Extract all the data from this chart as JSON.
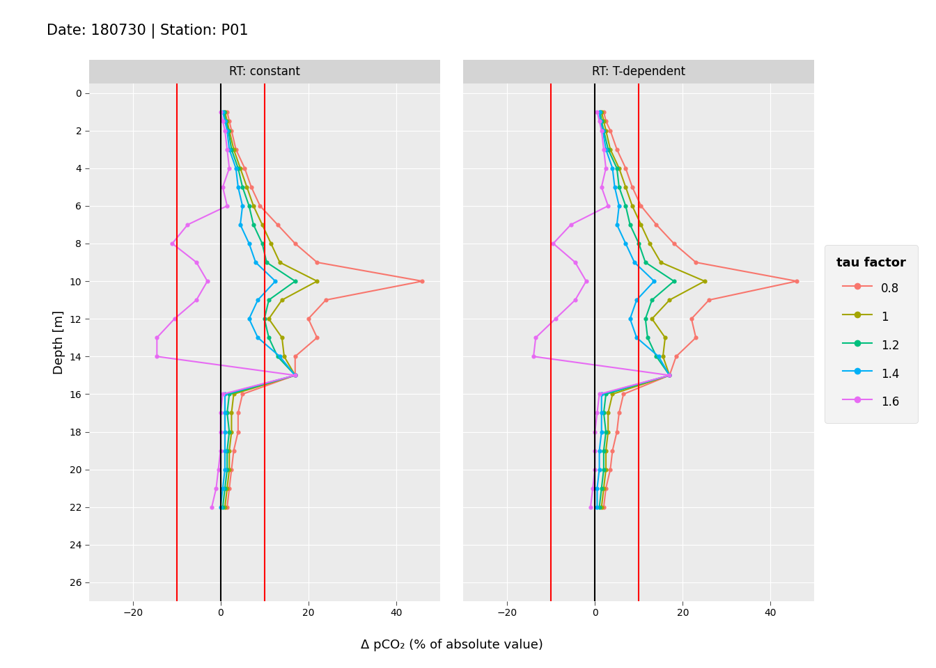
{
  "title": "Date: 180730 | Station: P01",
  "xlabel": "Δ pCO₂ (% of absolute value)",
  "ylabel": "Depth [m]",
  "panel_titles": [
    "RT: constant",
    "RT: T-dependent"
  ],
  "legend_title": "tau factor",
  "legend_labels": [
    "0.8",
    "1",
    "1.2",
    "1.4",
    "1.6"
  ],
  "colors": {
    "0.8": "#F8766D",
    "1": "#A3A500",
    "1.2": "#00BF7D",
    "1.4": "#00B0F6",
    "1.6": "#E76BF3"
  },
  "xlim": [
    -30,
    50
  ],
  "ylim": [
    27,
    -0.5
  ],
  "xticks": [
    -20,
    0,
    20,
    40
  ],
  "yticks": [
    0,
    2,
    4,
    6,
    8,
    10,
    12,
    14,
    16,
    18,
    20,
    22,
    24,
    26
  ],
  "red_vlines": [
    -10,
    10
  ],
  "black_vline": 0,
  "background_color": "#EBEBEB",
  "grid_color": "white",
  "panel_header_color": "#D4D4D4",
  "constant": {
    "0.8": {
      "depth": [
        1.0,
        1.5,
        2.0,
        3.0,
        4.0,
        5.0,
        6.0,
        7.0,
        8.0,
        9.0,
        10.0,
        11.0,
        12.0,
        13.0,
        14.0,
        15.0,
        16.0,
        17.0,
        18.0,
        19.0,
        20.0,
        21.0,
        22.0
      ],
      "values": [
        1.5,
        2.0,
        2.5,
        3.5,
        5.5,
        7.0,
        9.0,
        13.0,
        17.0,
        22.0,
        46.0,
        24.0,
        20.0,
        22.0,
        17.0,
        17.0,
        5.0,
        4.0,
        4.0,
        3.0,
        2.5,
        2.0,
        1.5
      ]
    },
    "1": {
      "depth": [
        1.0,
        1.5,
        2.0,
        3.0,
        4.0,
        5.0,
        6.0,
        7.0,
        8.0,
        9.0,
        10.0,
        11.0,
        12.0,
        13.0,
        14.0,
        15.0,
        16.0,
        17.0,
        18.0,
        19.0,
        20.0,
        21.0,
        22.0
      ],
      "values": [
        1.0,
        1.5,
        2.0,
        3.0,
        4.5,
        6.0,
        7.5,
        9.5,
        11.5,
        13.5,
        22.0,
        14.0,
        11.0,
        14.0,
        14.5,
        17.0,
        3.0,
        2.5,
        2.5,
        2.0,
        2.0,
        1.5,
        1.0
      ]
    },
    "1.2": {
      "depth": [
        1.0,
        1.5,
        2.0,
        3.0,
        4.0,
        5.0,
        6.0,
        7.0,
        8.0,
        9.0,
        10.0,
        11.0,
        12.0,
        13.0,
        14.0,
        15.0,
        16.0,
        17.0,
        18.0,
        19.0,
        20.0,
        21.0,
        22.0
      ],
      "values": [
        0.8,
        1.2,
        1.8,
        2.5,
        4.0,
        5.0,
        6.5,
        7.5,
        9.5,
        10.5,
        17.0,
        11.0,
        10.0,
        11.0,
        13.0,
        17.0,
        2.0,
        1.5,
        2.0,
        1.5,
        1.5,
        1.0,
        0.5
      ]
    },
    "1.4": {
      "depth": [
        1.0,
        1.5,
        2.0,
        3.0,
        4.0,
        5.0,
        6.0,
        7.0,
        8.0,
        9.0,
        10.0,
        11.0,
        12.0,
        13.0,
        14.0,
        15.0,
        16.0,
        17.0,
        18.0,
        19.0,
        20.0,
        21.0,
        22.0
      ],
      "values": [
        0.5,
        1.0,
        1.5,
        2.0,
        3.5,
        4.0,
        5.0,
        4.5,
        6.5,
        8.0,
        12.5,
        8.5,
        6.5,
        8.5,
        13.5,
        17.0,
        1.0,
        1.0,
        1.0,
        1.0,
        1.0,
        0.5,
        0.0
      ]
    },
    "1.6": {
      "depth": [
        1.0,
        1.5,
        2.0,
        3.0,
        4.0,
        5.0,
        6.0,
        7.0,
        8.0,
        9.0,
        10.0,
        11.0,
        12.0,
        13.0,
        14.0,
        15.0,
        16.0,
        17.0,
        18.0,
        19.0,
        20.0,
        21.0,
        22.0
      ],
      "values": [
        0.0,
        0.5,
        1.0,
        1.5,
        2.0,
        0.5,
        1.5,
        -7.5,
        -11.0,
        -5.5,
        -3.0,
        -5.5,
        -10.5,
        -14.5,
        -14.5,
        17.0,
        0.5,
        0.0,
        0.0,
        0.0,
        -0.5,
        -1.0,
        -2.0
      ]
    }
  },
  "tdep": {
    "0.8": {
      "depth": [
        1.0,
        1.5,
        2.0,
        3.0,
        4.0,
        5.0,
        6.0,
        7.0,
        8.0,
        9.0,
        10.0,
        11.0,
        12.0,
        13.0,
        14.0,
        15.0,
        16.0,
        17.0,
        18.0,
        19.0,
        20.0,
        21.0,
        22.0
      ],
      "values": [
        2.0,
        2.5,
        3.5,
        5.0,
        7.0,
        8.5,
        10.5,
        14.0,
        18.0,
        23.0,
        46.0,
        26.0,
        22.0,
        23.0,
        18.5,
        17.0,
        6.5,
        5.5,
        5.0,
        4.0,
        3.5,
        2.5,
        2.0
      ]
    },
    "1": {
      "depth": [
        1.0,
        1.5,
        2.0,
        3.0,
        4.0,
        5.0,
        6.0,
        7.0,
        8.0,
        9.0,
        10.0,
        11.0,
        12.0,
        13.0,
        14.0,
        15.0,
        16.0,
        17.0,
        18.0,
        19.0,
        20.0,
        21.0,
        22.0
      ],
      "values": [
        1.5,
        2.0,
        2.5,
        3.5,
        5.5,
        7.0,
        8.5,
        10.5,
        12.5,
        15.0,
        25.0,
        17.0,
        13.0,
        16.0,
        15.5,
        17.0,
        4.0,
        3.0,
        3.0,
        2.5,
        2.5,
        2.0,
        1.5
      ]
    },
    "1.2": {
      "depth": [
        1.0,
        1.5,
        2.0,
        3.0,
        4.0,
        5.0,
        6.0,
        7.0,
        8.0,
        9.0,
        10.0,
        11.0,
        12.0,
        13.0,
        14.0,
        15.0,
        16.0,
        17.0,
        18.0,
        19.0,
        20.0,
        21.0,
        22.0
      ],
      "values": [
        1.2,
        1.5,
        2.0,
        3.0,
        5.0,
        5.5,
        7.0,
        8.0,
        10.0,
        11.5,
        18.0,
        13.0,
        11.5,
        12.0,
        14.0,
        17.0,
        2.5,
        2.0,
        2.5,
        2.0,
        2.0,
        1.5,
        1.0
      ]
    },
    "1.4": {
      "depth": [
        1.0,
        1.5,
        2.0,
        3.0,
        4.0,
        5.0,
        6.0,
        7.0,
        8.0,
        9.0,
        10.0,
        11.0,
        12.0,
        13.0,
        14.0,
        15.0,
        16.0,
        17.0,
        18.0,
        19.0,
        20.0,
        21.0,
        22.0
      ],
      "values": [
        1.0,
        1.2,
        1.8,
        2.5,
        4.0,
        4.5,
        5.5,
        5.0,
        7.0,
        9.0,
        13.5,
        9.5,
        8.0,
        9.5,
        14.5,
        17.0,
        1.5,
        1.5,
        1.5,
        1.0,
        1.0,
        0.5,
        0.5
      ]
    },
    "1.6": {
      "depth": [
        1.0,
        1.5,
        2.0,
        3.0,
        4.0,
        5.0,
        6.0,
        7.0,
        8.0,
        9.0,
        10.0,
        11.0,
        12.0,
        13.0,
        14.0,
        15.0,
        16.0,
        17.0,
        18.0,
        19.0,
        20.0,
        21.0,
        22.0
      ],
      "values": [
        0.5,
        1.0,
        1.5,
        2.0,
        2.5,
        1.5,
        3.0,
        -5.5,
        -9.5,
        -4.5,
        -2.0,
        -4.5,
        -9.0,
        -13.5,
        -14.0,
        17.0,
        1.0,
        0.5,
        0.0,
        0.0,
        0.0,
        -0.5,
        -1.0
      ]
    }
  }
}
